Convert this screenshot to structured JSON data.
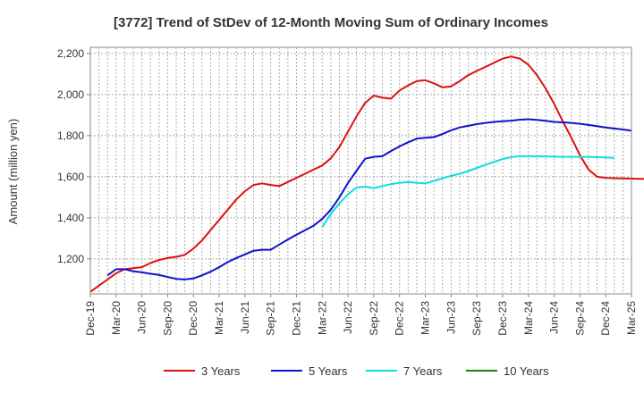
{
  "chart_data": {
    "type": "line",
    "title": "[3772]  Trend of StDev of 12-Month Moving Sum of Ordinary Incomes",
    "xlabel": "",
    "ylabel": "Amount (million yen)",
    "ylim": [
      1030,
      2230
    ],
    "yticks": [
      1200,
      1400,
      1600,
      1800,
      2000,
      2200
    ],
    "ytick_labels": [
      "1,200",
      "1,400",
      "1,600",
      "1,800",
      "2,000",
      "2,200"
    ],
    "x_tick_labels": [
      "Dec-19",
      "Mar-20",
      "Jun-20",
      "Sep-20",
      "Dec-20",
      "Mar-21",
      "Jun-21",
      "Sep-21",
      "Dec-21",
      "Mar-22",
      "Jun-22",
      "Sep-22",
      "Dec-22",
      "Mar-23",
      "Jun-23",
      "Sep-23",
      "Dec-23",
      "Mar-24",
      "Jun-24",
      "Sep-24",
      "Dec-24",
      "Mar-25"
    ],
    "grid": true,
    "legend_position": "bottom",
    "series": [
      {
        "name": "3 Years",
        "color": "#dd1111",
        "start_month": 0,
        "values": [
          1040,
          1070,
          1100,
          1130,
          1150,
          1155,
          1160,
          1180,
          1195,
          1205,
          1210,
          1220,
          1250,
          1290,
          1340,
          1390,
          1440,
          1490,
          1530,
          1560,
          1568,
          1560,
          1555,
          1575,
          1595,
          1615,
          1635,
          1655,
          1690,
          1745,
          1820,
          1895,
          1960,
          1995,
          1985,
          1980,
          2020,
          2045,
          2065,
          2070,
          2055,
          2035,
          2040,
          2065,
          2095,
          2115,
          2135,
          2155,
          2175,
          2185,
          2175,
          2145,
          2095,
          2030,
          1955,
          1870,
          1790,
          1705,
          1635,
          1600,
          1595,
          1593,
          1592,
          1591,
          1590,
          1590
        ]
      },
      {
        "name": "5 Years",
        "color": "#1111cc",
        "start_month": 2,
        "values": [
          1120,
          1150,
          1150,
          1140,
          1135,
          1128,
          1122,
          1112,
          1103,
          1100,
          1105,
          1120,
          1138,
          1160,
          1185,
          1205,
          1222,
          1240,
          1245,
          1245,
          1270,
          1295,
          1318,
          1340,
          1362,
          1395,
          1440,
          1500,
          1570,
          1630,
          1688,
          1697,
          1700,
          1725,
          1748,
          1768,
          1785,
          1790,
          1793,
          1808,
          1826,
          1840,
          1848,
          1856,
          1862,
          1867,
          1870,
          1873,
          1878,
          1880,
          1877,
          1872,
          1867,
          1865,
          1862,
          1858,
          1852,
          1846,
          1840,
          1835,
          1830,
          1825
        ]
      },
      {
        "name": "7 Years",
        "color": "#11dddd",
        "start_month": 27,
        "values": [
          1355,
          1420,
          1470,
          1515,
          1548,
          1552,
          1545,
          1555,
          1564,
          1570,
          1575,
          1570,
          1568,
          1580,
          1592,
          1605,
          1615,
          1628,
          1643,
          1658,
          1672,
          1686,
          1696,
          1700,
          1700,
          1699,
          1699,
          1698,
          1697,
          1697,
          1697,
          1697,
          1695,
          1694,
          1692
        ]
      },
      {
        "name": "10 Years",
        "color": "#118811",
        "start_month": 0,
        "values": []
      }
    ]
  }
}
